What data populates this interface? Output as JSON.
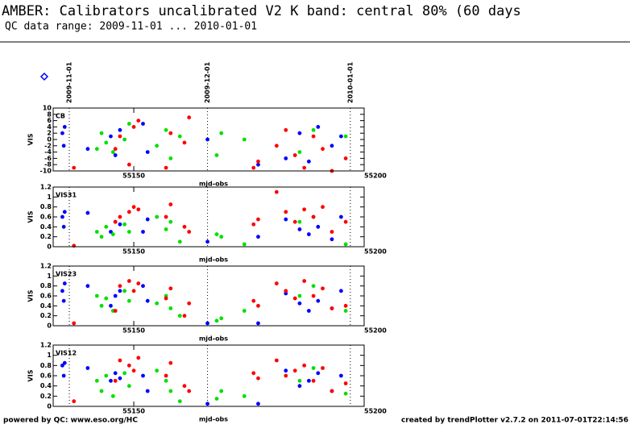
{
  "header": {
    "title": "AMBER: Calibrators uncalibrated V2 K band: central 80% (60 days",
    "subtitle": "QC data range: 2009-11-01 ... 2010-01-01"
  },
  "date_markers": [
    {
      "value": 55136,
      "label": "2009-11-01"
    },
    {
      "value": 55166,
      "label": "2009-12-01"
    },
    {
      "value": 55197,
      "label": "2010-01-01"
    }
  ],
  "chart_data": [
    {
      "type": "scatter",
      "label": "CB",
      "y_label": "VIS",
      "x_label": "mjd-obs",
      "xlim": [
        55132.5,
        55200
      ],
      "xticks": [
        55150,
        55200
      ],
      "ylim": [
        -10,
        10
      ],
      "yticks": [
        -10,
        -8,
        -6,
        -4,
        -2,
        0,
        2,
        4,
        6,
        8,
        10
      ],
      "series": [
        {
          "color": "#0000ff",
          "x": [
            55134.5,
            55134.8,
            55135,
            55140,
            55145,
            55146,
            55147,
            55152,
            55153,
            55166,
            55177,
            55183,
            55186,
            55188,
            55190,
            55193,
            55195
          ],
          "values": [
            2,
            -2,
            4,
            -3,
            1,
            -5,
            3,
            5,
            -4,
            0,
            -8,
            -6,
            2,
            -7,
            4,
            -2,
            1
          ]
        },
        {
          "color": "#00e000",
          "x": [
            55142,
            55143,
            55144,
            55145.5,
            55148,
            55149,
            55155,
            55157,
            55158,
            55160,
            55168,
            55169,
            55174,
            55186,
            55189,
            55196
          ],
          "values": [
            -3,
            2,
            -1,
            -4,
            0,
            5,
            -2,
            3,
            -6,
            1,
            -5,
            2,
            0,
            -4,
            3,
            1
          ]
        },
        {
          "color": "#ff0000",
          "x": [
            55137,
            55146,
            55147,
            55149,
            55150,
            55151,
            55157,
            55158,
            55161,
            55162,
            55176,
            55177,
            55181,
            55183,
            55185,
            55187,
            55189,
            55191,
            55193,
            55196
          ],
          "values": [
            -9,
            -3,
            1,
            -8,
            4,
            6,
            -9,
            2,
            -1,
            7,
            -9,
            -7,
            -2,
            3,
            -5,
            -9,
            1,
            -3,
            -10,
            -6
          ]
        }
      ]
    },
    {
      "type": "scatter",
      "label": "VIS31",
      "y_label": "VIS",
      "x_label": "mjd-obs",
      "xlim": [
        55132.5,
        55200
      ],
      "xticks": [
        55150,
        55200
      ],
      "ylim": [
        0,
        1.2
      ],
      "yticks": [
        0,
        0.2,
        0.4,
        0.6,
        0.8,
        1,
        1.2
      ],
      "series": [
        {
          "color": "#0000ff",
          "x": [
            55134.5,
            55134.8,
            55135,
            55140,
            55145,
            55146,
            55147,
            55152,
            55153,
            55166,
            55177,
            55183,
            55186,
            55188,
            55190,
            55193,
            55195
          ],
          "values": [
            0.6,
            0.4,
            0.7,
            0.68,
            0.3,
            0.5,
            0.45,
            0.3,
            0.55,
            0.1,
            0.2,
            0.55,
            0.35,
            0.25,
            0.4,
            0.15,
            0.6
          ]
        },
        {
          "color": "#00e000",
          "x": [
            55142,
            55143,
            55144,
            55145.5,
            55148,
            55149,
            55155,
            55157,
            55158,
            55160,
            55168,
            55169,
            55174,
            55186,
            55189,
            55196
          ],
          "values": [
            0.3,
            0.2,
            0.4,
            0.25,
            0.45,
            0.3,
            0.6,
            0.35,
            0.5,
            0.1,
            0.25,
            0.2,
            0.05,
            0.5,
            0.6,
            0.05
          ]
        },
        {
          "color": "#ff0000",
          "x": [
            55137,
            55146,
            55147,
            55149,
            55150,
            55151,
            55157,
            55158,
            55161,
            55162,
            55176,
            55177,
            55181,
            55183,
            55185,
            55187,
            55189,
            55191,
            55193,
            55196
          ],
          "values": [
            0.02,
            0.5,
            0.6,
            0.7,
            0.8,
            0.75,
            0.6,
            0.85,
            0.4,
            0.3,
            0.45,
            0.55,
            1.1,
            0.7,
            0.5,
            0.75,
            0.6,
            0.8,
            0.3,
            0.5
          ]
        }
      ]
    },
    {
      "type": "scatter",
      "label": "VIS23",
      "y_label": "VIS",
      "x_label": "mjd-obs",
      "xlim": [
        55132.5,
        55200
      ],
      "xticks": [
        55150,
        55200
      ],
      "ylim": [
        0,
        1.2
      ],
      "yticks": [
        0,
        0.2,
        0.4,
        0.6,
        0.8,
        1,
        1.2
      ],
      "series": [
        {
          "color": "#0000ff",
          "x": [
            55134.5,
            55134.8,
            55135,
            55140,
            55145,
            55146,
            55147,
            55152,
            55153,
            55166,
            55177,
            55183,
            55186,
            55188,
            55190,
            55193,
            55195
          ],
          "values": [
            0.7,
            0.5,
            0.85,
            0.8,
            0.4,
            0.6,
            0.7,
            0.8,
            0.5,
            0.05,
            0.05,
            0.65,
            0.45,
            0.3,
            0.5,
            0.35,
            0.7
          ]
        },
        {
          "color": "#00e000",
          "x": [
            55142,
            55143,
            55144,
            55145.5,
            55148,
            55149,
            55155,
            55157,
            55158,
            55160,
            55168,
            55169,
            55174,
            55186,
            55189,
            55196
          ],
          "values": [
            0.6,
            0.4,
            0.55,
            0.3,
            0.7,
            0.5,
            0.45,
            0.6,
            0.35,
            0.2,
            0.1,
            0.15,
            0.3,
            0.6,
            0.8,
            0.3
          ]
        },
        {
          "color": "#ff0000",
          "x": [
            55137,
            55146,
            55147,
            55149,
            55150,
            55151,
            55157,
            55158,
            55161,
            55162,
            55176,
            55177,
            55181,
            55183,
            55185,
            55187,
            55189,
            55191,
            55193,
            55196
          ],
          "values": [
            0.05,
            0.3,
            0.8,
            0.9,
            0.7,
            0.85,
            0.55,
            0.75,
            0.2,
            0.45,
            0.5,
            0.4,
            0.85,
            0.7,
            0.55,
            0.9,
            0.6,
            0.75,
            0.35,
            0.4
          ]
        }
      ]
    },
    {
      "type": "scatter",
      "label": "VIS12",
      "y_label": "VIS",
      "x_label": "mjd-obs",
      "xlim": [
        55132.5,
        55200
      ],
      "xticks": [
        55150,
        55200
      ],
      "ylim": [
        0,
        1.2
      ],
      "yticks": [
        0,
        0.2,
        0.4,
        0.6,
        0.8,
        1,
        1.2
      ],
      "series": [
        {
          "color": "#0000ff",
          "x": [
            55134.5,
            55134.8,
            55135,
            55140,
            55145,
            55146,
            55147,
            55152,
            55153,
            55166,
            55177,
            55183,
            55186,
            55188,
            55190,
            55193,
            55195
          ],
          "values": [
            0.8,
            0.6,
            0.85,
            0.75,
            0.5,
            0.65,
            0.55,
            0.6,
            0.3,
            0.05,
            0.05,
            0.7,
            0.4,
            0.5,
            0.65,
            0.3,
            0.6
          ]
        },
        {
          "color": "#00e000",
          "x": [
            55142,
            55143,
            55144,
            55145.5,
            55148,
            55149,
            55155,
            55157,
            55158,
            55160,
            55168,
            55169,
            55174,
            55186,
            55189,
            55196
          ],
          "values": [
            0.5,
            0.3,
            0.6,
            0.2,
            0.65,
            0.4,
            0.7,
            0.5,
            0.3,
            0.1,
            0.15,
            0.3,
            0.2,
            0.5,
            0.75,
            0.25
          ]
        },
        {
          "color": "#ff0000",
          "x": [
            55137,
            55146,
            55147,
            55149,
            55150,
            55151,
            55157,
            55158,
            55161,
            55162,
            55176,
            55177,
            55181,
            55183,
            55185,
            55187,
            55189,
            55191,
            55193,
            55196
          ],
          "values": [
            0.1,
            0.5,
            0.9,
            0.8,
            0.7,
            0.95,
            0.6,
            0.85,
            0.4,
            0.3,
            0.65,
            0.55,
            0.9,
            0.6,
            0.7,
            0.8,
            0.5,
            0.75,
            0.3,
            0.45
          ]
        }
      ]
    }
  ],
  "footer": {
    "left": "powered by QC: www.eso.org/HC",
    "right": "created by trendPlotter v2.7.2 on 2011-07-01T22:14:56"
  }
}
